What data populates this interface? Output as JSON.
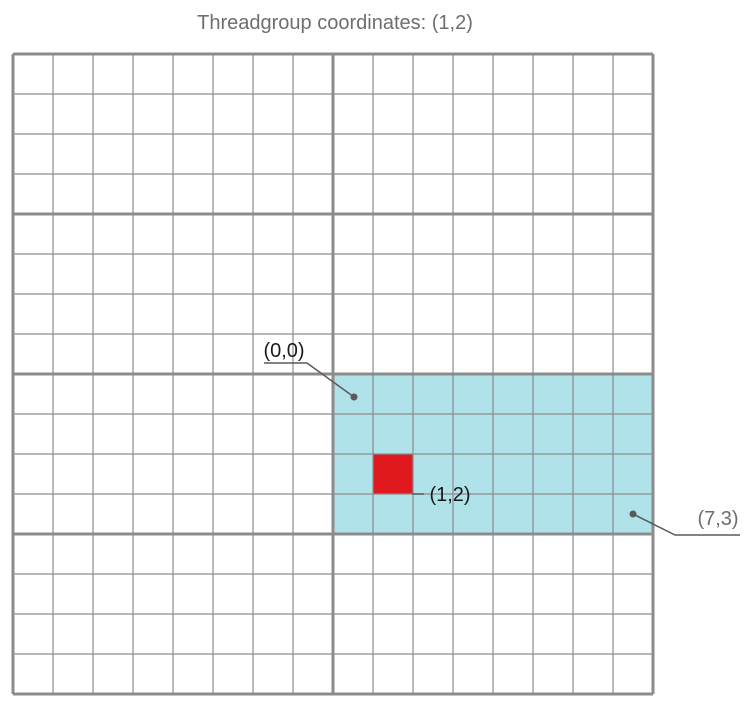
{
  "title": "Threadgroup coordinates: (1,2)",
  "labels": {
    "origin": "(0,0)",
    "thread": "(1,2)",
    "corner": "(7,3)"
  },
  "grid": {
    "columns": 16,
    "rows": 16,
    "threadgroup_width": 8,
    "threadgroup_height": 4,
    "highlight_threadgroup": {
      "col": 1,
      "row": 2
    },
    "highlight_thread": {
      "x": 1,
      "y": 2
    }
  },
  "colors": {
    "threadgroup_fill": "#b0e2ea",
    "thread_fill": "#e0191e",
    "line": "#8c8c8c",
    "callout": "#5a5a5a"
  }
}
